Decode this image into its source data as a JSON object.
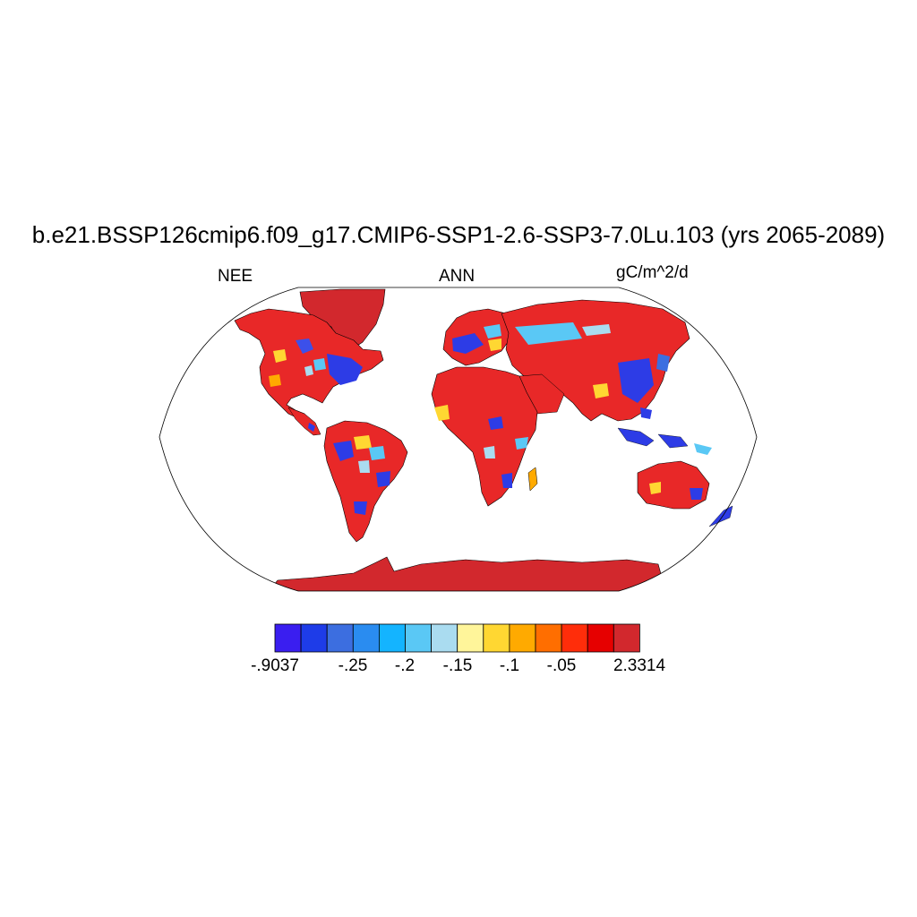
{
  "title": "b.e21.BSSP126cmip6.f09_g17.CMIP6-SSP1-2.6-SSP3-7.0Lu.103 (yrs 2065-2089)",
  "variable": "NEE",
  "season": "ANN",
  "units": "gC/m^2/d",
  "projection": "Robinson",
  "colorbar": {
    "colors": [
      "#3a1ef0",
      "#1e3ce8",
      "#3c6ee0",
      "#2a8cf0",
      "#14b4ff",
      "#5ac8f5",
      "#aadcf0",
      "#fff59a",
      "#ffd732",
      "#ffaa00",
      "#ff6e00",
      "#ff2d0a",
      "#e60000",
      "#d2282d"
    ],
    "labels": [
      "-.9037",
      "-.25",
      "-.2",
      "-.15",
      "-.1",
      "-.05",
      "2.3314"
    ]
  }
}
